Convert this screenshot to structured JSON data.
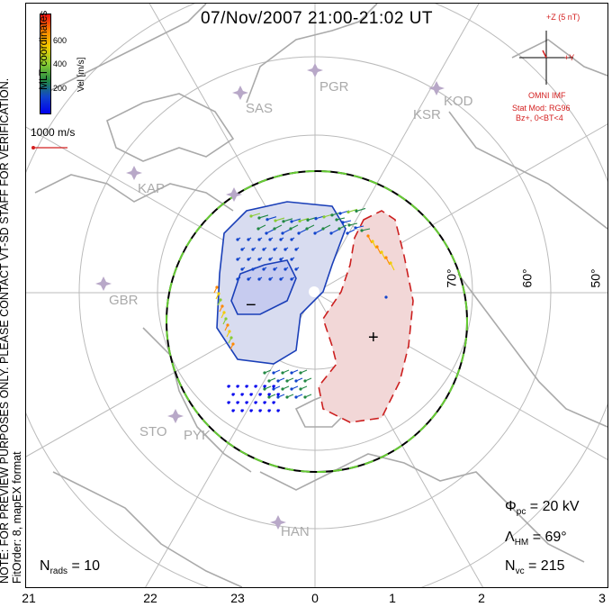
{
  "title": "07/Nov/2007 21:00-21:02 UT",
  "side_note": {
    "line1": "NOTE: FOR PREVIEW PURPOSES ONLY. PLEASE CONTACT VT-SD STAFF FOR VERIFICATION.",
    "line2": "FitOrder: 8, mapEX format"
  },
  "colorbar": {
    "title": "Vel [m/s]",
    "ticks": [
      "600",
      "400",
      "200"
    ],
    "colors": [
      "#ee1111",
      "#ff8800",
      "#f2cc00",
      "#88cc33",
      "#228844",
      "#1144cc",
      "#0000ee"
    ]
  },
  "coord_label": "MLT coordinates",
  "reference_vector": "1000 m/s",
  "imf": {
    "z_label": "+Z (5 nT)",
    "y_label": "+Y",
    "source": "OMNI IMF",
    "stat_model": "Stat Mod: RG96",
    "condition": "Bz+, 0<BT<4"
  },
  "latitudes": [
    "70°",
    "60°",
    "50°"
  ],
  "sites": [
    "PGR",
    "SAS",
    "KSR",
    "KOD",
    "KAP",
    "GBR",
    "STO",
    "PYK",
    "HAN"
  ],
  "potential_signs": {
    "negative": "−",
    "positive": "+"
  },
  "stats": {
    "phi_sym": "Φ",
    "phi_sub": "pc",
    "phi_val": "= 20 kV",
    "lam_sym": "Λ",
    "lam_sub": "HM",
    "lam_val": "= 69°",
    "nvc_sym": "N",
    "nvc_sub": "vc",
    "nvc_val": "= 215",
    "nrads_sym": "N",
    "nrads_sub": "rads",
    "nrads_val": "= 10"
  },
  "mlt_labels": [
    "21",
    "22",
    "23",
    "0",
    "1",
    "2",
    "3"
  ],
  "colors": {
    "grid": "#bbbbbb",
    "coast": "#aaaaaa",
    "neg_fill": "#d8dcf0",
    "neg_line": "#1a3fb8",
    "pos_fill": "#f2d7d7",
    "pos_line": "#cc1f1f",
    "hmb_green": "#66cc33"
  }
}
